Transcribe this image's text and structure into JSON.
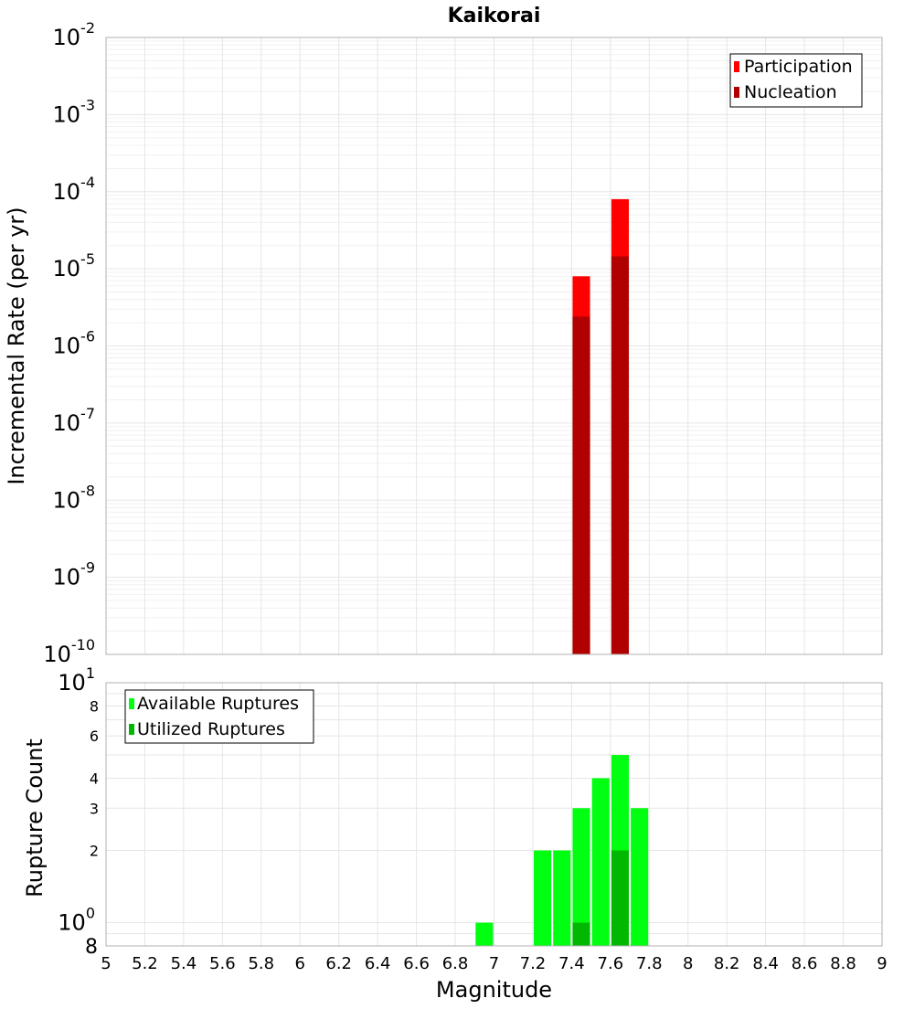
{
  "title": "Kaikorai",
  "colors": {
    "participation": "#ff0000",
    "nucleation": "#b00000",
    "available": "#00ff10",
    "utilized": "#00b800",
    "grid": "#e6e6e6",
    "frame": "#b0b0b0"
  },
  "chart_data": [
    {
      "type": "bar",
      "panel": "top",
      "ylabel": "Incremental Rate (per yr)",
      "xlabel": "",
      "xlim": [
        5,
        9
      ],
      "ylim": [
        1e-10,
        0.01
      ],
      "yscale": "log",
      "ytick_exponents": [
        -10,
        -9,
        -8,
        -7,
        -6,
        -5,
        -4,
        -3,
        -2
      ],
      "grid": true,
      "legend_position": "top-right",
      "bar_width": 0.09,
      "series": [
        {
          "name": "Participation",
          "color": "#ff0000",
          "x": [
            7.45,
            7.65
          ],
          "values": [
            8e-06,
            8e-05
          ]
        },
        {
          "name": "Nucleation",
          "color": "#b00000",
          "x": [
            7.45,
            7.65
          ],
          "values": [
            2.4e-06,
            1.45e-05
          ]
        }
      ]
    },
    {
      "type": "bar",
      "panel": "bottom",
      "ylabel": "Rupture Count",
      "xlabel": "Magnitude",
      "xlim": [
        5,
        9
      ],
      "ylim": [
        0.8,
        10
      ],
      "yscale": "log",
      "ytick_labels": [
        {
          "value": 2,
          "text": "2"
        },
        {
          "value": 3,
          "text": "3"
        },
        {
          "value": 4,
          "text": "4"
        },
        {
          "value": 6,
          "text": "6"
        },
        {
          "value": 8,
          "text": "8"
        }
      ],
      "ytick_pow": [
        {
          "value": 1,
          "base": "10",
          "exp": "0"
        },
        {
          "value": 10,
          "base": "10",
          "exp": "1"
        }
      ],
      "ybottom_label": "8",
      "xticks": [
        "5",
        "5.2",
        "5.4",
        "5.6",
        "5.8",
        "6",
        "6.2",
        "6.4",
        "6.6",
        "6.8",
        "7",
        "7.2",
        "7.4",
        "7.6",
        "7.8",
        "8",
        "8.2",
        "8.4",
        "8.6",
        "8.8",
        "9"
      ],
      "grid": true,
      "legend_position": "top-left",
      "bar_width": 0.09,
      "series": [
        {
          "name": "Available Ruptures",
          "color": "#00ff10",
          "x": [
            6.95,
            7.25,
            7.35,
            7.45,
            7.55,
            7.65,
            7.75
          ],
          "values": [
            1,
            2,
            2,
            3,
            4,
            5,
            3
          ]
        },
        {
          "name": "Utilized Ruptures",
          "color": "#00b800",
          "x": [
            7.45,
            7.65
          ],
          "values": [
            1,
            2
          ]
        }
      ]
    }
  ]
}
